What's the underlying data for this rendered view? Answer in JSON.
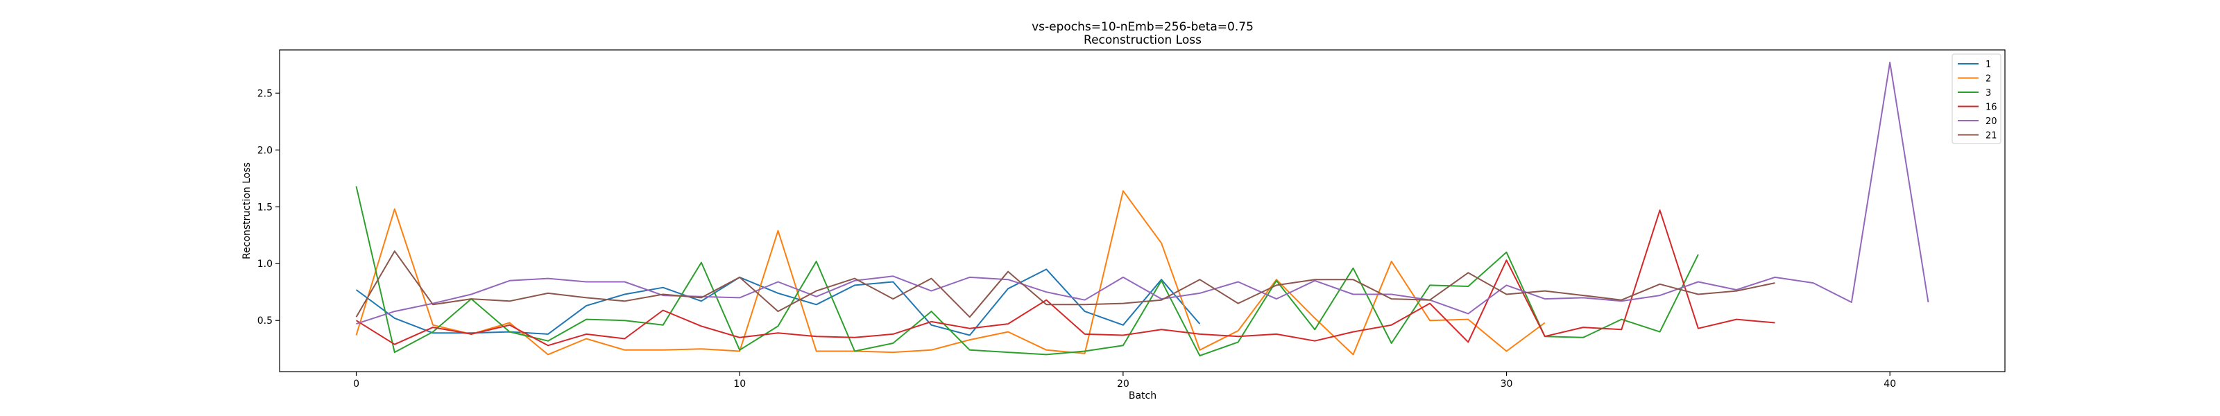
{
  "chart_data": {
    "type": "line",
    "title": "vs-epochs=10-nEmb=256-beta=0.75",
    "subtitle": "Reconstruction Loss",
    "xlabel": "Batch",
    "ylabel": "Reconstruction Loss",
    "xlim": [
      -2,
      43
    ],
    "ylim": [
      0.05,
      2.88
    ],
    "xticks": [
      0,
      10,
      20,
      30,
      40
    ],
    "yticks": [
      0.5,
      1.0,
      1.5,
      2.0,
      2.5
    ],
    "ytick_labels": [
      "0.5",
      "1.0",
      "1.5",
      "2.0",
      "2.5"
    ],
    "grid": false,
    "legend_position": "top-right",
    "series": [
      {
        "name": "1",
        "color": "#1f77b4",
        "values": [
          0.77,
          0.52,
          0.39,
          0.39,
          0.4,
          0.38,
          0.63,
          0.73,
          0.79,
          0.67,
          0.88,
          0.74,
          0.64,
          0.81,
          0.84,
          0.46,
          0.37,
          0.78,
          0.95,
          0.58,
          0.46,
          0.86,
          0.47
        ]
      },
      {
        "name": "2",
        "color": "#ff7f0e",
        "values": [
          0.37,
          1.48,
          0.46,
          0.38,
          0.48,
          0.2,
          0.34,
          0.24,
          0.24,
          0.25,
          0.23,
          1.29,
          0.23,
          0.23,
          0.22,
          0.24,
          0.33,
          0.4,
          0.24,
          0.21,
          1.64,
          1.18,
          0.24,
          0.41,
          0.86,
          0.52,
          0.2,
          1.02,
          0.5,
          0.51,
          0.23,
          0.48
        ]
      },
      {
        "name": "3",
        "color": "#2ca02c",
        "values": [
          1.68,
          0.22,
          0.4,
          0.69,
          0.4,
          0.32,
          0.51,
          0.5,
          0.46,
          1.01,
          0.24,
          0.45,
          1.02,
          0.23,
          0.3,
          0.58,
          0.24,
          0.22,
          0.2,
          0.23,
          0.28,
          0.85,
          0.19,
          0.31,
          0.85,
          0.42,
          0.96,
          0.3,
          0.81,
          0.8,
          1.1,
          0.36,
          0.35,
          0.51,
          0.4,
          1.08
        ]
      },
      {
        "name": "16",
        "color": "#d62728",
        "values": [
          0.5,
          0.29,
          0.44,
          0.38,
          0.46,
          0.28,
          0.38,
          0.34,
          0.59,
          0.45,
          0.35,
          0.39,
          0.36,
          0.35,
          0.38,
          0.49,
          0.43,
          0.47,
          0.68,
          0.38,
          0.37,
          0.42,
          0.38,
          0.36,
          0.38,
          0.32,
          0.4,
          0.46,
          0.65,
          0.31,
          1.03,
          0.36,
          0.44,
          0.42,
          1.47,
          0.43,
          0.51,
          0.48
        ]
      },
      {
        "name": "20",
        "color": "#9467bd",
        "values": [
          0.47,
          0.58,
          0.65,
          0.73,
          0.85,
          0.87,
          0.84,
          0.84,
          0.72,
          0.71,
          0.7,
          0.84,
          0.71,
          0.85,
          0.89,
          0.76,
          0.88,
          0.86,
          0.75,
          0.68,
          0.88,
          0.69,
          0.74,
          0.84,
          0.69,
          0.85,
          0.73,
          0.73,
          0.68,
          0.56,
          0.81,
          0.69,
          0.7,
          0.67,
          0.72,
          0.84,
          0.77,
          0.88,
          0.83,
          0.66,
          2.77,
          0.66
        ]
      },
      {
        "name": "21",
        "color": "#8c564b",
        "values": [
          0.53,
          1.11,
          0.64,
          0.69,
          0.67,
          0.74,
          0.7,
          0.67,
          0.73,
          0.7,
          0.88,
          0.58,
          0.76,
          0.87,
          0.69,
          0.87,
          0.53,
          0.93,
          0.64,
          0.64,
          0.65,
          0.68,
          0.86,
          0.65,
          0.81,
          0.86,
          0.86,
          0.69,
          0.68,
          0.92,
          0.73,
          0.76,
          0.72,
          0.68,
          0.82,
          0.73,
          0.76,
          0.83
        ]
      }
    ]
  }
}
